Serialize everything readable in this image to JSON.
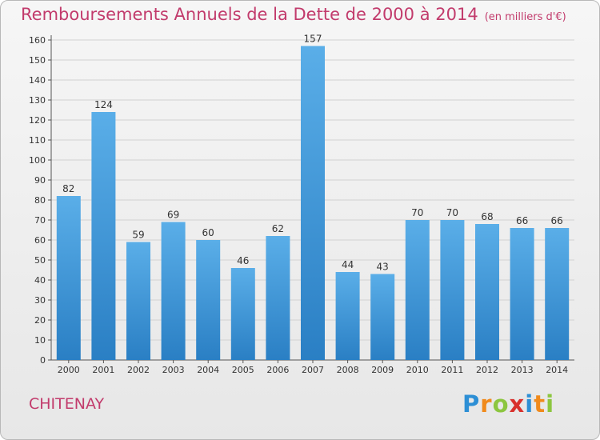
{
  "header": {
    "title": "Remboursements Annuels de la Dette de 2000 à 2014",
    "subtitle": "(en milliers d'€)"
  },
  "footer": {
    "city": "CHITENAY",
    "logo_text": "Proxiti"
  },
  "colors": {
    "accent": "#c23b6c",
    "bar_light": "#5aaee8",
    "bar_dark": "#2a7fc4"
  },
  "chart_data": {
    "type": "bar",
    "title": "Remboursements Annuels de la Dette de 2000 à 2014",
    "subtitle": "(en milliers d'€)",
    "categories": [
      "2000",
      "2001",
      "2002",
      "2003",
      "2004",
      "2005",
      "2006",
      "2007",
      "2008",
      "2009",
      "2010",
      "2011",
      "2012",
      "2013",
      "2014"
    ],
    "values": [
      82,
      124,
      59,
      69,
      60,
      46,
      62,
      157,
      44,
      43,
      70,
      70,
      68,
      66,
      66
    ],
    "ylim": [
      0,
      160
    ],
    "yticks": [
      0,
      10,
      20,
      30,
      40,
      50,
      60,
      70,
      80,
      90,
      100,
      110,
      120,
      130,
      140,
      150,
      160
    ],
    "grid": true,
    "legend": "none"
  }
}
